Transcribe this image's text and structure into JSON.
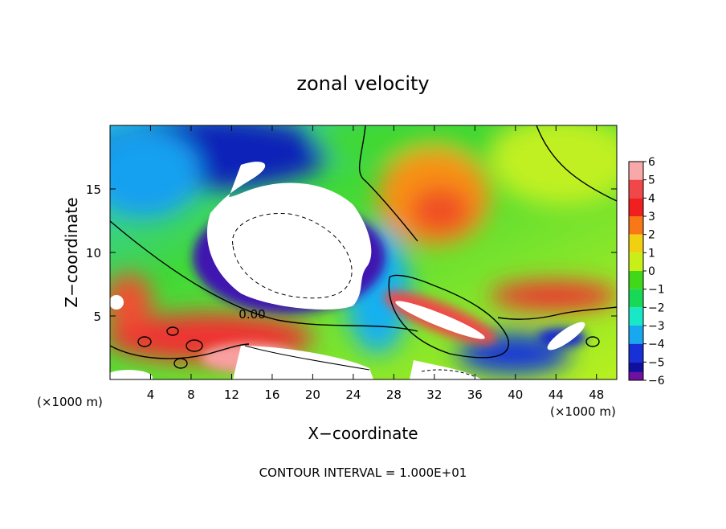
{
  "chart_data": {
    "type": "heatmap",
    "title": "zonal velocity",
    "xlabel": "X−coordinate",
    "ylabel": "Z−coordinate",
    "x_unit_left": "(×1000 m)",
    "x_unit_right": "(×1000 m)",
    "footer": "CONTOUR INTERVAL = 1.000E+01",
    "xlim": [
      0,
      50
    ],
    "ylim": [
      0,
      20
    ],
    "x_ticks": [
      4,
      8,
      12,
      16,
      20,
      24,
      28,
      32,
      36,
      40,
      44,
      48
    ],
    "x_tick_labels": [
      "4",
      "8",
      "12",
      "16",
      "20",
      "24",
      "28",
      "32",
      "36",
      "40",
      "44",
      "48"
    ],
    "y_ticks": [
      5,
      10,
      15
    ],
    "y_tick_labels": [
      "5",
      "10",
      "15"
    ],
    "contour_label": "0.00",
    "colorbar": {
      "levels": [
        6,
        5,
        4,
        3,
        2,
        1,
        0,
        -1,
        -2,
        -3,
        -4,
        -5,
        -6
      ],
      "labels": [
        "6",
        "5",
        "4",
        "3",
        "2",
        "1",
        "0",
        "−1",
        "−2",
        "−3",
        "−4",
        "−5",
        "−6"
      ],
      "colors": [
        "#f8a8a8",
        "#f04848",
        "#f02020",
        "#f87818",
        "#f0d010",
        "#c8f018",
        "#40d818",
        "#18d858",
        "#18e8c8",
        "#18a8f0",
        "#1830d8",
        "#1010a0",
        "#7010a0"
      ]
    }
  }
}
